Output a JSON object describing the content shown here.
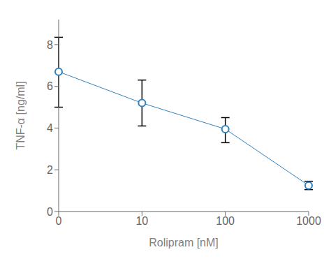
{
  "chart_data": {
    "type": "line",
    "x_label": "Rolipram [nM]",
    "y_label": "TNF-α [ng/ml]",
    "categories": [
      "0",
      "10",
      "100",
      "1000"
    ],
    "values": [
      6.7,
      5.2,
      3.95,
      1.25
    ],
    "error_lower": [
      1.7,
      1.1,
      0.65,
      0.2
    ],
    "error_upper": [
      1.65,
      1.1,
      0.55,
      0.2
    ],
    "marker": "circle",
    "ylim": [
      0,
      9.2
    ],
    "yticks": [
      0,
      2,
      4,
      6,
      8
    ],
    "grid": false
  }
}
